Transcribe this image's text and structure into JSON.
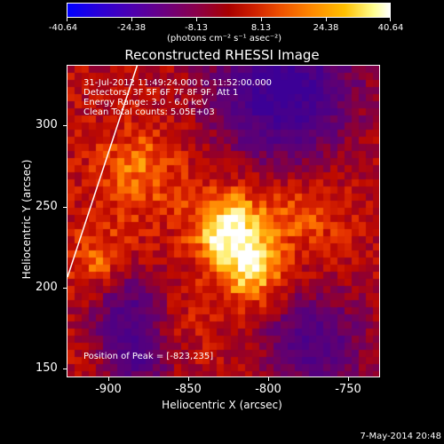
{
  "colorbar": {
    "tick_labels": [
      "-40.64",
      "-24.38",
      "-8.13",
      "8.13",
      "24.38",
      "40.64"
    ],
    "unit_label": "(photons cm⁻² s⁻¹ asec⁻²)"
  },
  "title": "Reconstructed RHESSI Image",
  "info": {
    "time_range": "31-Jul-2012 11:49:24.000 to 11:52:00.000",
    "detectors": "Detectors: 3F 5F 6F 7F 8F 9F, Att 1",
    "energy": "Energy Range: 3.0 - 6.0 keV",
    "clean": "Clean    Total counts: 5.05E+03",
    "peak": "Position of Peak = [-823,235]"
  },
  "axes": {
    "x_title": "Heliocentric X (arcsec)",
    "y_title": "Heliocentric Y (arcsec)",
    "x_ticks": [
      "-900",
      "-850",
      "-800",
      "-750"
    ],
    "y_ticks": [
      "300",
      "250",
      "200",
      "150"
    ]
  },
  "chart_data": {
    "type": "heatmap",
    "xlabel": "Heliocentric X (arcsec)",
    "ylabel": "Heliocentric Y (arcsec)",
    "xlim": [
      -925,
      -730
    ],
    "ylim": [
      145,
      335
    ],
    "zlim": [
      -40.64,
      40.64
    ],
    "peak": [
      -823,
      235
    ]
  },
  "datestamp": "7-May-2014 20:48"
}
